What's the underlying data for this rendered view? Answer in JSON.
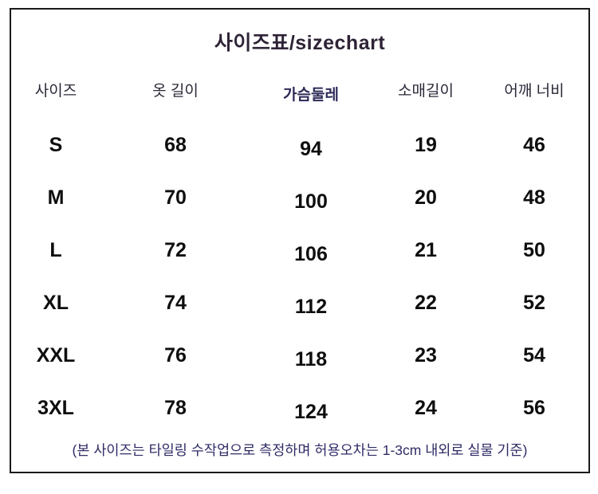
{
  "chart_data": {
    "type": "table",
    "title": "사이즈표/sizechart",
    "columns": [
      "사이즈",
      "옷 길이",
      "가슴둘레",
      "소매길이",
      "어깨 너비"
    ],
    "rows": [
      [
        "S",
        "68",
        "94",
        "19",
        "46"
      ],
      [
        "M",
        "70",
        "100",
        "20",
        "48"
      ],
      [
        "L",
        "72",
        "106",
        "21",
        "50"
      ],
      [
        "XL",
        "74",
        "112",
        "22",
        "52"
      ],
      [
        "XXL",
        "76",
        "118",
        "23",
        "54"
      ],
      [
        "3XL",
        "78",
        "124",
        "24",
        "56"
      ]
    ],
    "footnote": "(본 사이즈는 타일링 수작업으로 측정하며 허용오차는 1-3cm 내외로 실물 기준)",
    "layout": "bordered table image, 5 centered columns, no gridlines between cells"
  },
  "colors": {
    "bg_color": "#ffffff",
    "border_color": "#1a1a1a",
    "title_color": "#2e2336",
    "header_color": "#2b2838",
    "header_accent_color": "#2d2b58",
    "value_color": "#0e0e0e",
    "footnote_color": "#2f2c66"
  }
}
